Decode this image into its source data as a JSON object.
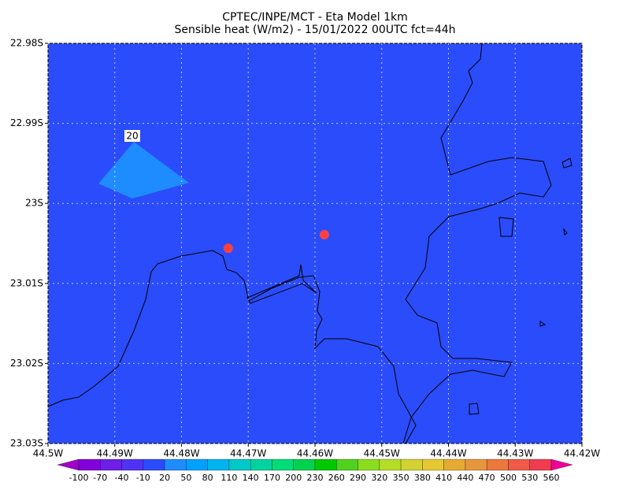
{
  "map": {
    "title": "CPTEC/INPE/MCT -  Eta Model 1km",
    "subtitle": "Sensible heat (W/m2) - 15/01/2022 00UTC fct=44h",
    "xlim": [
      -44.5,
      -44.42
    ],
    "ylim": [
      -23.03,
      -22.98
    ],
    "xticks": [
      {
        "value": -44.5,
        "label": "44.5W"
      },
      {
        "value": -44.49,
        "label": "44.49W"
      },
      {
        "value": -44.48,
        "label": "44.48W"
      },
      {
        "value": -44.47,
        "label": "44.47W"
      },
      {
        "value": -44.46,
        "label": "44.46W"
      },
      {
        "value": -44.45,
        "label": "44.45W"
      },
      {
        "value": -44.44,
        "label": "44.44W"
      },
      {
        "value": -44.43,
        "label": "44.43W"
      },
      {
        "value": -44.42,
        "label": "44.42W"
      }
    ],
    "yticks": [
      {
        "value": -22.98,
        "label": "22.98S"
      },
      {
        "value": -22.99,
        "label": "22.99S"
      },
      {
        "value": -23.0,
        "label": "23S"
      },
      {
        "value": -23.01,
        "label": "23.01S"
      },
      {
        "value": -23.02,
        "label": "23.02S"
      },
      {
        "value": -23.03,
        "label": "23.03S"
      }
    ],
    "grid": true,
    "background_color": "#2b4cfa",
    "contour_label": "20",
    "contour_color": "#1e8cff",
    "points": {
      "color": "#ff4040",
      "lon": [
        -44.473,
        -44.4586
      ],
      "lat": [
        -23.0056,
        -23.0039
      ]
    },
    "colorbar": {
      "levels": [
        -100,
        -70,
        -40,
        -10,
        20,
        50,
        80,
        110,
        140,
        170,
        200,
        230,
        260,
        290,
        320,
        350,
        380,
        410,
        440,
        470,
        500,
        530,
        560
      ],
      "colors": [
        "#a000c8",
        "#8200dc",
        "#6e1ee6",
        "#5032f5",
        "#2b4cfa",
        "#1e8cff",
        "#00a0ff",
        "#00b4f0",
        "#00c8c8",
        "#00d2a0",
        "#00dc78",
        "#00d250",
        "#00c800",
        "#50d21e",
        "#8cdc1e",
        "#b4dc28",
        "#d2d232",
        "#e6c832",
        "#e6aa32",
        "#e6963c",
        "#eb783c",
        "#f05a46",
        "#f03c50",
        "#f00096"
      ]
    }
  }
}
